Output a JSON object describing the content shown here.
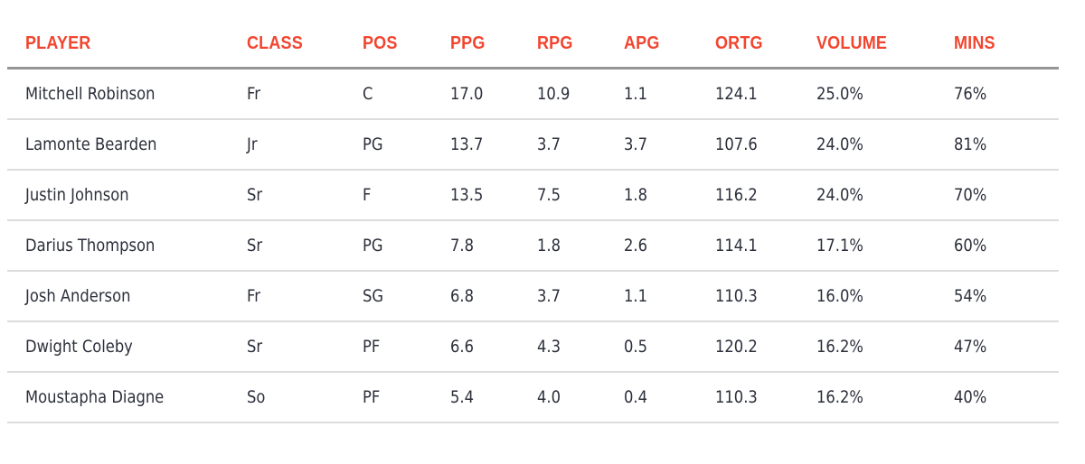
{
  "theme": {
    "header_color": "#f2452f",
    "text_color": "#2b2f3a",
    "header_rule": "#959595",
    "row_rule": "#dcdcdc"
  },
  "table": {
    "headers": [
      "PLAYER",
      "CLASS",
      "POS",
      "PPG",
      "RPG",
      "APG",
      "ORTG",
      "VOLUME",
      "MINS"
    ],
    "rows": [
      [
        "Mitchell Robinson",
        "Fr",
        "C",
        "17.0",
        "10.9",
        "1.1",
        "124.1",
        "25.0%",
        "76%"
      ],
      [
        "Lamonte Bearden",
        "Jr",
        "PG",
        "13.7",
        "3.7",
        "3.7",
        "107.6",
        "24.0%",
        "81%"
      ],
      [
        "Justin Johnson",
        "Sr",
        "F",
        "13.5",
        "7.5",
        "1.8",
        "116.2",
        "24.0%",
        "70%"
      ],
      [
        "Darius Thompson",
        "Sr",
        "PG",
        "7.8",
        "1.8",
        "2.6",
        "114.1",
        "17.1%",
        "60%"
      ],
      [
        "Josh Anderson",
        "Fr",
        "SG",
        "6.8",
        "3.7",
        "1.1",
        "110.3",
        "16.0%",
        "54%"
      ],
      [
        "Dwight Coleby",
        "Sr",
        "PF",
        "6.6",
        "4.3",
        "0.5",
        "120.2",
        "16.2%",
        "47%"
      ],
      [
        "Moustapha Diagne",
        "So",
        "PF",
        "5.4",
        "4.0",
        "0.4",
        "110.3",
        "16.2%",
        "40%"
      ]
    ]
  }
}
